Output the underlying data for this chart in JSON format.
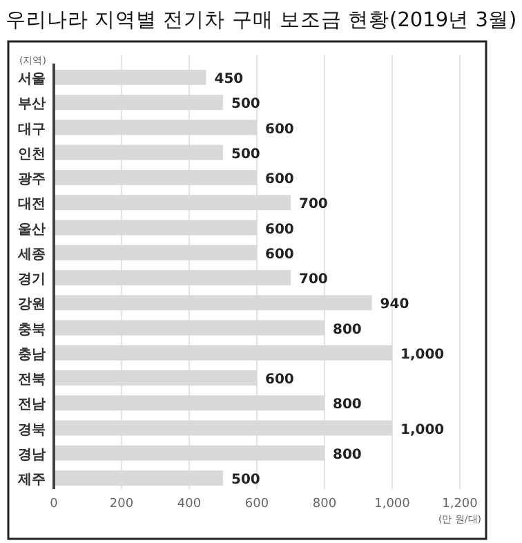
{
  "chart_data": {
    "type": "bar",
    "orientation": "horizontal",
    "title": "우리나라 지역별 전기차 구매 보조금 현황(2019년 3월)",
    "ylabel": "(지역)",
    "xlabel": "(만 원/대)",
    "categories": [
      "서울",
      "부산",
      "대구",
      "인천",
      "광주",
      "대전",
      "울산",
      "세종",
      "경기",
      "강원",
      "충북",
      "충남",
      "전북",
      "전남",
      "경북",
      "경남",
      "제주"
    ],
    "values": [
      450,
      500,
      600,
      500,
      600,
      700,
      600,
      600,
      700,
      940,
      800,
      1000,
      600,
      800,
      1000,
      800,
      500
    ],
    "value_labels": [
      "450",
      "500",
      "600",
      "500",
      "600",
      "700",
      "600",
      "600",
      "700",
      "940",
      "800",
      "1,000",
      "600",
      "800",
      "1,000",
      "800",
      "500"
    ],
    "color": "#d9d9d9",
    "xlim": [
      0,
      1200
    ],
    "xticks": [
      0,
      200,
      400,
      600,
      800,
      {
        "value": 1000,
        "label": "1,000"
      },
      {
        "value": 1200,
        "label": "1,200"
      }
    ],
    "grid": "x"
  }
}
